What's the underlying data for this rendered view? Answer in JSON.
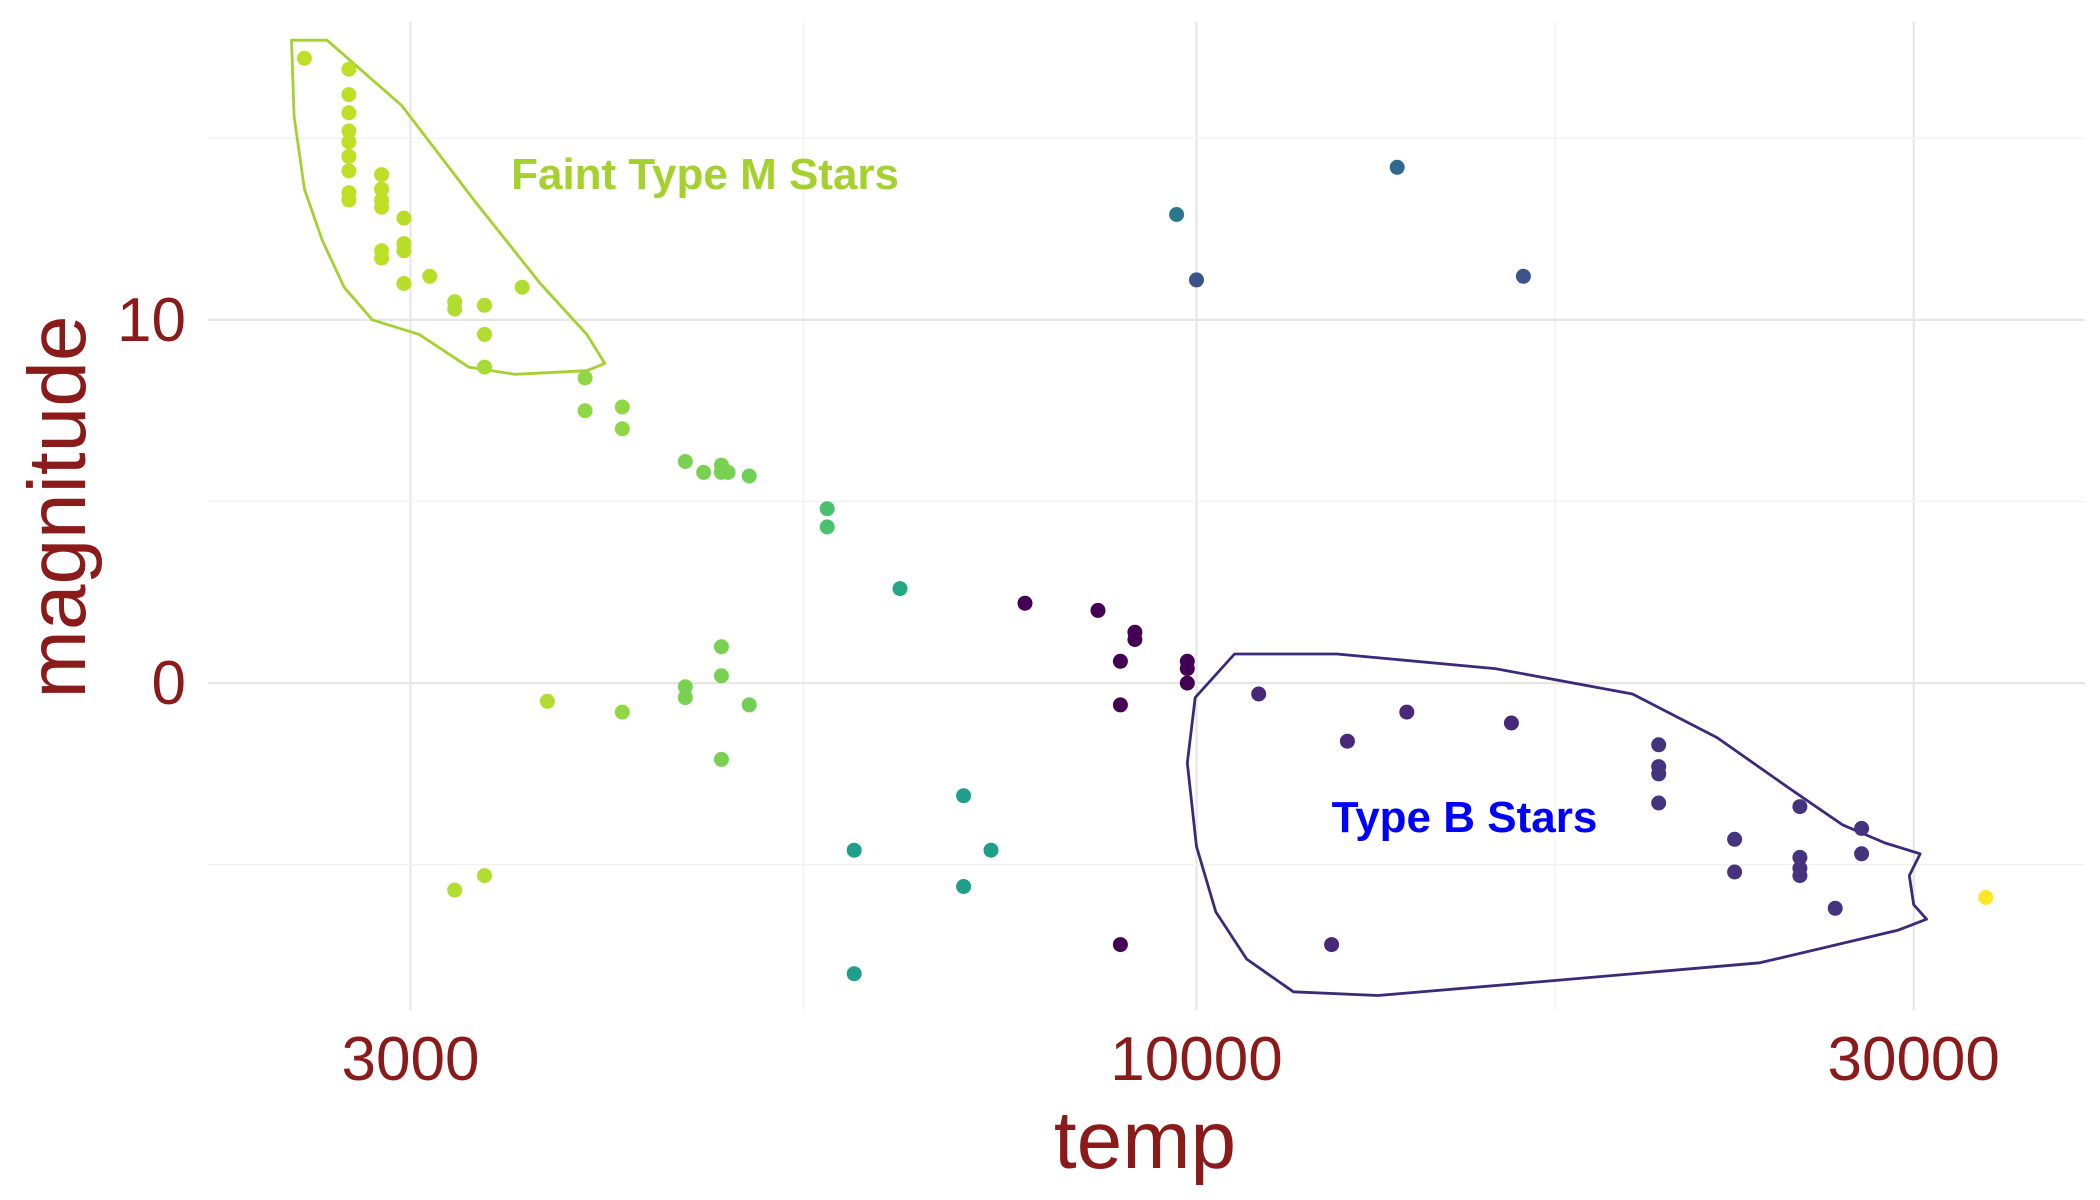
{
  "chart_data": {
    "type": "scatter",
    "title": "",
    "xlabel": "temp",
    "ylabel": "magnitude",
    "x_scale": "log10",
    "xlim": [
      2200,
      39000
    ],
    "ylim": [
      -9.0,
      18.2
    ],
    "x_ticks": [
      3000,
      10000,
      30000
    ],
    "x_tick_labels": [
      "3000",
      "10000",
      "30000"
    ],
    "y_ticks": [
      0,
      10
    ],
    "y_tick_labels": [
      "0",
      "10"
    ],
    "grid": true,
    "legend": "none",
    "color_scale": "viridis",
    "points": [
      {
        "x": 2550,
        "y": 17.2,
        "color": "#bddf26"
      },
      {
        "x": 2730,
        "y": 16.9,
        "color": "#bddf26"
      },
      {
        "x": 2730,
        "y": 16.2,
        "color": "#bddf26"
      },
      {
        "x": 2730,
        "y": 15.7,
        "color": "#bddf26"
      },
      {
        "x": 2730,
        "y": 15.2,
        "color": "#bddf26"
      },
      {
        "x": 2730,
        "y": 14.9,
        "color": "#bddf26"
      },
      {
        "x": 2730,
        "y": 14.5,
        "color": "#bddf26"
      },
      {
        "x": 2730,
        "y": 14.1,
        "color": "#bddf26"
      },
      {
        "x": 2730,
        "y": 13.5,
        "color": "#bddf26"
      },
      {
        "x": 2730,
        "y": 13.3,
        "color": "#bddf26"
      },
      {
        "x": 2870,
        "y": 14.0,
        "color": "#bddf26"
      },
      {
        "x": 2870,
        "y": 13.6,
        "color": "#bddf26"
      },
      {
        "x": 2870,
        "y": 13.3,
        "color": "#bddf26"
      },
      {
        "x": 2870,
        "y": 13.1,
        "color": "#bddf26"
      },
      {
        "x": 2870,
        "y": 11.9,
        "color": "#bddf26"
      },
      {
        "x": 2870,
        "y": 11.7,
        "color": "#bddf26"
      },
      {
        "x": 2970,
        "y": 12.8,
        "color": "#b8de29"
      },
      {
        "x": 2970,
        "y": 12.1,
        "color": "#b8de29"
      },
      {
        "x": 2970,
        "y": 11.9,
        "color": "#b8de29"
      },
      {
        "x": 2970,
        "y": 11.0,
        "color": "#b8de29"
      },
      {
        "x": 3090,
        "y": 11.2,
        "color": "#b8de29"
      },
      {
        "x": 3210,
        "y": 10.5,
        "color": "#b0dd2f"
      },
      {
        "x": 3210,
        "y": 10.3,
        "color": "#b0dd2f"
      },
      {
        "x": 3360,
        "y": 10.4,
        "color": "#b0dd2f"
      },
      {
        "x": 3360,
        "y": 9.6,
        "color": "#b0dd2f"
      },
      {
        "x": 3360,
        "y": 8.7,
        "color": "#a5db36"
      },
      {
        "x": 3560,
        "y": 10.9,
        "color": "#b0dd2f"
      },
      {
        "x": 3920,
        "y": 8.4,
        "color": "#8fd744"
      },
      {
        "x": 3920,
        "y": 7.5,
        "color": "#8fd744"
      },
      {
        "x": 4150,
        "y": 7.6,
        "color": "#8fd744"
      },
      {
        "x": 4150,
        "y": 7.0,
        "color": "#8fd744"
      },
      {
        "x": 4570,
        "y": 6.1,
        "color": "#7ad151"
      },
      {
        "x": 4700,
        "y": 5.8,
        "color": "#7ad151"
      },
      {
        "x": 4830,
        "y": 6.0,
        "color": "#7ad151"
      },
      {
        "x": 4830,
        "y": 5.8,
        "color": "#7ad151"
      },
      {
        "x": 4880,
        "y": 5.8,
        "color": "#7ad151"
      },
      {
        "x": 5040,
        "y": 5.7,
        "color": "#70cf57"
      },
      {
        "x": 5680,
        "y": 4.8,
        "color": "#4ac16d"
      },
      {
        "x": 5680,
        "y": 4.3,
        "color": "#4ac16d"
      },
      {
        "x": 6350,
        "y": 2.6,
        "color": "#22a884"
      },
      {
        "x": 7690,
        "y": 2.2,
        "color": "#440154"
      },
      {
        "x": 8600,
        "y": 2.0,
        "color": "#440154"
      },
      {
        "x": 9100,
        "y": 1.4,
        "color": "#440154"
      },
      {
        "x": 9100,
        "y": 1.2,
        "color": "#440154"
      },
      {
        "x": 8900,
        "y": 0.6,
        "color": "#440154"
      },
      {
        "x": 9860,
        "y": 0.6,
        "color": "#440154"
      },
      {
        "x": 9860,
        "y": 0.4,
        "color": "#440154"
      },
      {
        "x": 9860,
        "y": 0.0,
        "color": "#440154"
      },
      {
        "x": 8900,
        "y": -0.6,
        "color": "#440154"
      },
      {
        "x": 3700,
        "y": -0.5,
        "color": "#b0dd2f"
      },
      {
        "x": 4150,
        "y": -0.8,
        "color": "#8fd744"
      },
      {
        "x": 4570,
        "y": -0.1,
        "color": "#7ad151"
      },
      {
        "x": 4570,
        "y": -0.4,
        "color": "#7ad151"
      },
      {
        "x": 4830,
        "y": 1.0,
        "color": "#7ad151"
      },
      {
        "x": 4830,
        "y": 0.2,
        "color": "#7ad151"
      },
      {
        "x": 4830,
        "y": -2.1,
        "color": "#7ad151"
      },
      {
        "x": 5040,
        "y": -0.6,
        "color": "#70cf57"
      },
      {
        "x": 3210,
        "y": -5.7,
        "color": "#b0dd2f"
      },
      {
        "x": 3360,
        "y": -5.3,
        "color": "#b0dd2f"
      },
      {
        "x": 5920,
        "y": -4.6,
        "color": "#1f9e89"
      },
      {
        "x": 5920,
        "y": -8.0,
        "color": "#1f9e89"
      },
      {
        "x": 7000,
        "y": -3.1,
        "color": "#1f9e89"
      },
      {
        "x": 7000,
        "y": -5.6,
        "color": "#1f9e89"
      },
      {
        "x": 7300,
        "y": -4.6,
        "color": "#1f9e89"
      },
      {
        "x": 9700,
        "y": 12.9,
        "color": "#2a788e"
      },
      {
        "x": 10000,
        "y": 11.1,
        "color": "#3b528b"
      },
      {
        "x": 13600,
        "y": 14.2,
        "color": "#31688e"
      },
      {
        "x": 16500,
        "y": 11.2,
        "color": "#3b528b"
      },
      {
        "x": 8900,
        "y": -7.2,
        "color": "#440154"
      },
      {
        "x": 11000,
        "y": -0.3,
        "color": "#482878"
      },
      {
        "x": 12600,
        "y": -1.6,
        "color": "#482878"
      },
      {
        "x": 13800,
        "y": -0.8,
        "color": "#482878"
      },
      {
        "x": 16200,
        "y": -1.1,
        "color": "#482878"
      },
      {
        "x": 12300,
        "y": -7.2,
        "color": "#482878"
      },
      {
        "x": 20300,
        "y": -1.7,
        "color": "#46337e"
      },
      {
        "x": 20300,
        "y": -2.3,
        "color": "#46337e"
      },
      {
        "x": 20300,
        "y": -2.5,
        "color": "#46337e"
      },
      {
        "x": 20300,
        "y": -3.3,
        "color": "#46337e"
      },
      {
        "x": 22800,
        "y": -4.3,
        "color": "#46337e"
      },
      {
        "x": 22800,
        "y": -5.2,
        "color": "#46337e"
      },
      {
        "x": 25200,
        "y": -3.4,
        "color": "#46337e"
      },
      {
        "x": 25200,
        "y": -4.8,
        "color": "#46337e"
      },
      {
        "x": 25200,
        "y": -5.1,
        "color": "#46337e"
      },
      {
        "x": 25200,
        "y": -5.3,
        "color": "#46337e"
      },
      {
        "x": 26600,
        "y": -6.2,
        "color": "#46337e"
      },
      {
        "x": 27700,
        "y": -4.0,
        "color": "#46337e"
      },
      {
        "x": 27700,
        "y": -4.7,
        "color": "#46337e"
      },
      {
        "x": 33500,
        "y": -5.9,
        "color": "#fde725"
      }
    ],
    "annotations": [
      {
        "text": "Faint Type M Stars",
        "x": 3500,
        "y": 13.6,
        "color": "#a5d12f"
      },
      {
        "text": "Type B Stars",
        "x": 12300,
        "y": -4.1,
        "color": "#0000ff"
      }
    ],
    "ellipses": [
      {
        "color": "#a5d12f",
        "path": [
          [
            2500,
            17.7
          ],
          [
            2640,
            17.7
          ],
          [
            2960,
            15.9
          ],
          [
            3320,
            13.2
          ],
          [
            3660,
            11.0
          ],
          [
            3930,
            9.6
          ],
          [
            4040,
            8.8
          ],
          [
            3930,
            8.6
          ],
          [
            3520,
            8.5
          ],
          [
            3280,
            8.7
          ],
          [
            3040,
            9.6
          ],
          [
            2830,
            10.0
          ],
          [
            2710,
            10.9
          ],
          [
            2620,
            12.2
          ],
          [
            2550,
            13.6
          ],
          [
            2510,
            15.6
          ],
          [
            2500,
            17.7
          ]
        ]
      },
      {
        "color": "#3b2a7a",
        "path": [
          [
            10600,
            0.8
          ],
          [
            12400,
            0.8
          ],
          [
            15800,
            0.4
          ],
          [
            19500,
            -0.3
          ],
          [
            22200,
            -1.5
          ],
          [
            24800,
            -2.9
          ],
          [
            26900,
            -3.9
          ],
          [
            28700,
            -4.4
          ],
          [
            30300,
            -4.7
          ],
          [
            29800,
            -5.3
          ],
          [
            30000,
            -6.1
          ],
          [
            30600,
            -6.5
          ],
          [
            29300,
            -6.8
          ],
          [
            23700,
            -7.7
          ],
          [
            17200,
            -8.2
          ],
          [
            13200,
            -8.6
          ],
          [
            11600,
            -8.5
          ],
          [
            10800,
            -7.6
          ],
          [
            10300,
            -6.3
          ],
          [
            10000,
            -4.5
          ],
          [
            9860,
            -2.2
          ],
          [
            9980,
            -0.4
          ],
          [
            10600,
            0.8
          ]
        ]
      }
    ]
  }
}
